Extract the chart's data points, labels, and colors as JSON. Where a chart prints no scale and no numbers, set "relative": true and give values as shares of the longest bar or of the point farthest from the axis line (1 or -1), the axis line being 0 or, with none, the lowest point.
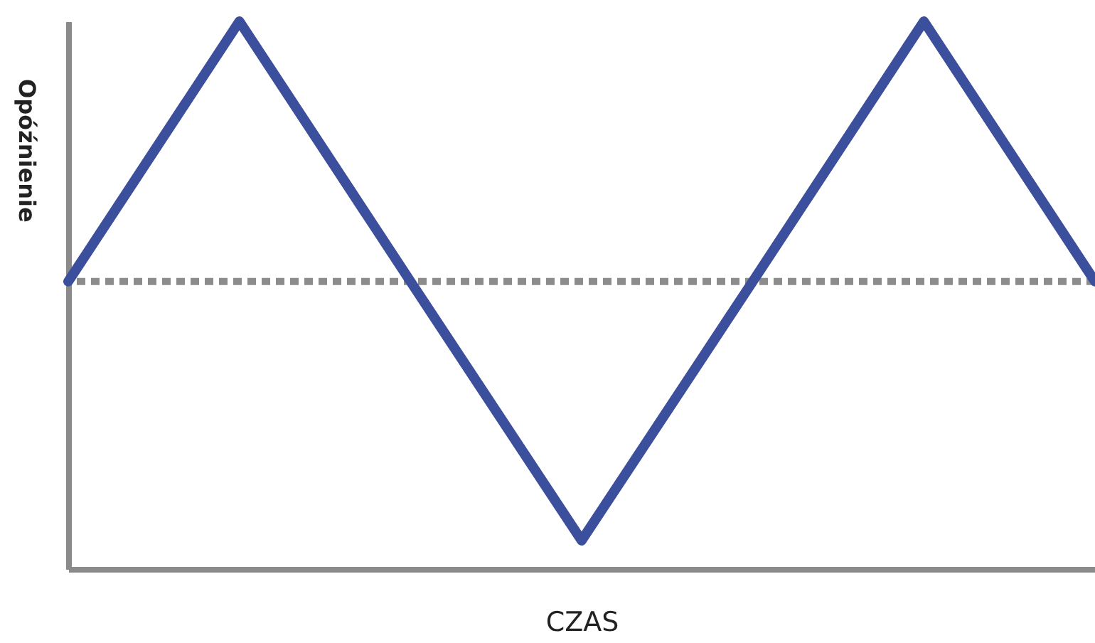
{
  "chart_data": {
    "type": "line",
    "relative": true,
    "xlabel": "CZAS",
    "ylabel": "Opóźnienie",
    "categories": [
      null,
      null,
      null,
      null,
      null,
      null,
      null
    ],
    "series": [
      {
        "color": "#3b4f9c",
        "values": [
          0.525,
          1,
          0.525,
          0.052,
          0.525,
          1,
          0.525
        ]
      }
    ],
    "ref_lines": [
      {
        "axis": "y",
        "value": 0.525,
        "color": "#8c8c8c",
        "line_style": "dotted"
      }
    ],
    "grid": false,
    "marker": "none",
    "line_style": "solid"
  }
}
